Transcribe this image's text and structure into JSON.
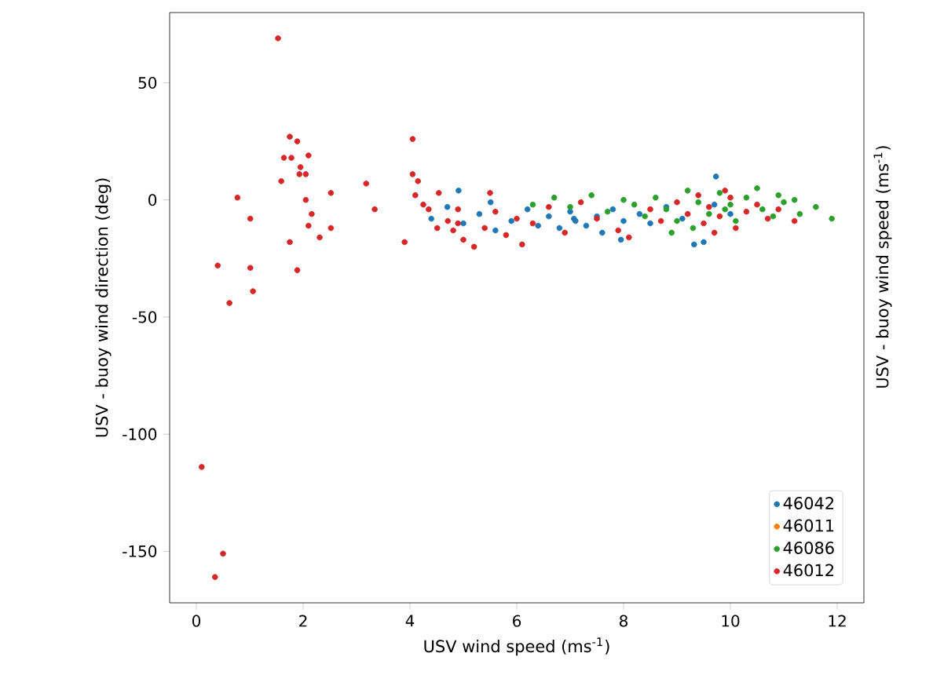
{
  "chart_data": {
    "type": "scatter",
    "xlabel": "USV wind speed (ms$^{-1}$)",
    "ylabel": "USV - buoy wind direction (deg)",
    "annotations": [
      "USV - buoy wind speed (ms$^{-1}$)"
    ],
    "xlim": [
      -0.5,
      12.5
    ],
    "ylim": [
      -172,
      80
    ],
    "xticks": [
      0,
      2,
      4,
      6,
      8,
      10,
      12
    ],
    "yticks": [
      -150,
      -100,
      -50,
      0,
      50
    ],
    "legend": "bottom right",
    "series": [
      {
        "name": "46042",
        "color": "#1f77b4",
        "x": [
          4.4,
          4.7,
          4.91,
          5.0,
          5.3,
          5.51,
          5.6,
          5.9,
          6.2,
          6.4,
          6.6,
          6.8,
          7.0,
          7.07,
          7.1,
          7.3,
          7.5,
          7.6,
          7.8,
          7.95,
          8.0,
          8.3,
          8.5,
          8.8,
          9.1,
          9.32,
          9.5,
          9.7,
          9.73,
          10.0
        ],
        "values": [
          -8,
          -3,
          4,
          -10,
          -6,
          -1,
          -13,
          -9,
          -4,
          -11,
          -7,
          -12,
          -5,
          -8,
          -9,
          -11,
          -7,
          -14,
          -4,
          -17,
          -9,
          -6,
          -10,
          -3,
          -8,
          -19,
          -18,
          -2,
          10,
          -6
        ]
      },
      {
        "name": "46011",
        "color": "#ff7f0e"
      },
      {
        "name": "46086",
        "color": "#2ca02c",
        "x": [
          6.3,
          6.7,
          7.0,
          7.4,
          7.7,
          8.0,
          8.2,
          8.4,
          8.6,
          8.8,
          8.9,
          9.0,
          9.2,
          9.3,
          9.4,
          9.6,
          9.8,
          9.9,
          10.0,
          10.1,
          10.3,
          10.5,
          10.6,
          10.8,
          10.9,
          11.0,
          11.2,
          11.3,
          11.6,
          11.9
        ],
        "values": [
          -2,
          1,
          -3,
          2,
          -5,
          0,
          -2,
          -7,
          1,
          -4,
          -14,
          -9,
          4,
          -12,
          -1,
          -6,
          3,
          -4,
          -2,
          -9,
          1,
          5,
          -4,
          -7,
          2,
          -1,
          0,
          -6,
          -3,
          -8
        ]
      },
      {
        "name": "46012",
        "color": "#d62728",
        "x": [
          0.1,
          0.35,
          0.4,
          0.5,
          0.62,
          0.77,
          1.01,
          1.01,
          1.06,
          1.53,
          1.59,
          1.64,
          1.75,
          1.75,
          1.78,
          1.89,
          1.89,
          1.93,
          1.95,
          2.05,
          2.05,
          2.1,
          2.1,
          2.16,
          2.31,
          2.52,
          2.52,
          3.18,
          3.34,
          3.9,
          4.05,
          4.05,
          4.1,
          4.15,
          4.25,
          4.35,
          4.51,
          4.54,
          4.71,
          4.81,
          4.9,
          4.9,
          5.0,
          5.2,
          5.4,
          5.5,
          5.6,
          5.8,
          6.0,
          6.1,
          6.3,
          6.6,
          6.9,
          7.2,
          7.5,
          7.9,
          8.1,
          8.5,
          8.7,
          9.0,
          9.2,
          9.4,
          9.5,
          9.6,
          9.7,
          9.8,
          9.9,
          10.0,
          10.1,
          10.3,
          10.5,
          10.7,
          10.9,
          11.2
        ],
        "values": [
          -114,
          -161,
          -28,
          -151,
          -44,
          1,
          -8,
          -29,
          -39,
          69,
          8,
          18,
          27,
          -18,
          18,
          25,
          -30,
          11,
          14,
          11,
          0,
          19,
          -11,
          -6,
          -16,
          3,
          -12,
          7,
          -4,
          -18,
          26,
          11,
          2,
          8,
          -2,
          -4,
          -12,
          3,
          -9,
          -13,
          -10,
          -4,
          -17,
          -20,
          -12,
          3,
          -5,
          -15,
          -8,
          -19,
          -10,
          -3,
          -14,
          -1,
          -8,
          -13,
          -16,
          -4,
          -9,
          -1,
          -6,
          2,
          -10,
          -3,
          -14,
          -7,
          4,
          1,
          -12,
          -5,
          -2,
          -8,
          -4,
          -9
        ]
      }
    ]
  }
}
